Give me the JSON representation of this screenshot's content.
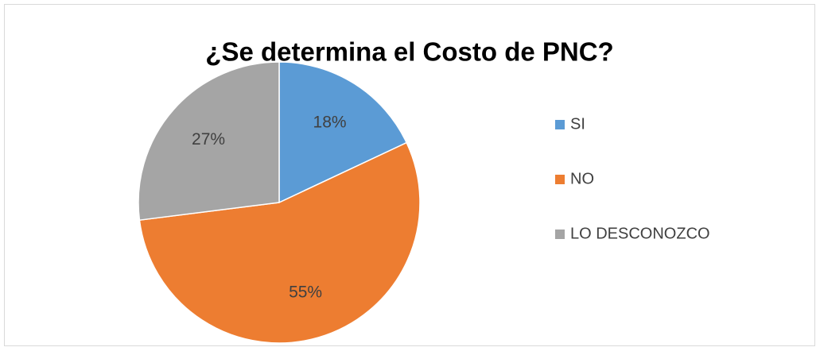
{
  "chart_data": {
    "type": "pie",
    "title": "¿Se determina el Costo de PNC?",
    "categories": [
      "SI",
      "NO",
      "LO DESCONOZCO"
    ],
    "values": [
      18,
      55,
      27
    ],
    "value_labels": [
      "18%",
      "55%",
      "27%"
    ],
    "colors": [
      "#5b9bd5",
      "#ed7d31",
      "#a5a5a5"
    ],
    "legend": "right"
  }
}
